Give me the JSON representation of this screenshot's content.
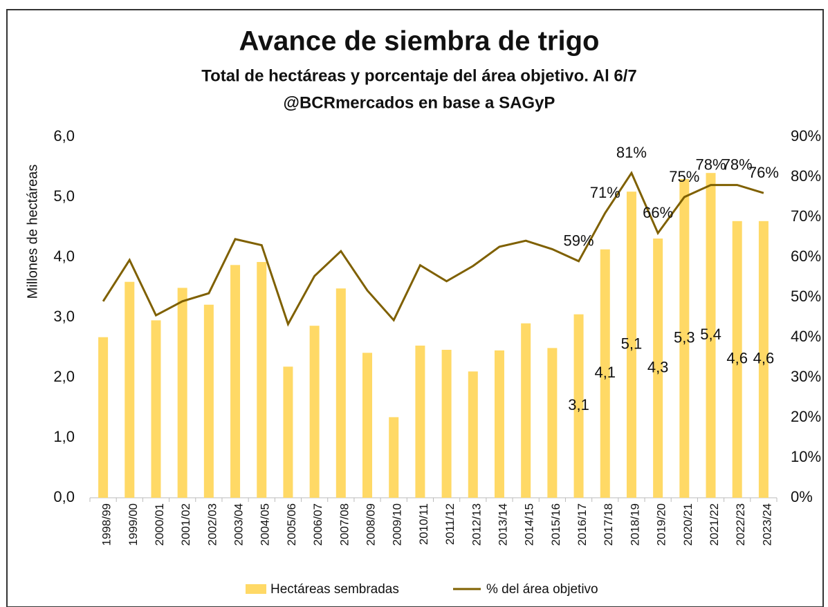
{
  "chart_data": {
    "type": "bar-line",
    "title": "Avance de siembra de trigo",
    "subtitle": "Total de hectáreas y porcentaje del área objetivo. Al 6/7",
    "source": "@BCRmercados en base a SAGyP",
    "y_label": "Millones de hectáreas",
    "categories": [
      "1998/99",
      "1999/00",
      "2000/01",
      "2001/02",
      "2002/03",
      "2003/04",
      "2004/05",
      "2005/06",
      "2006/07",
      "2007/08",
      "2008/09",
      "2009/10",
      "2010/11",
      "2011/12",
      "2012/13",
      "2013/14",
      "2014/15",
      "2015/16",
      "2016/17",
      "2017/18",
      "2018/19",
      "2019/20",
      "2020/21",
      "2021/22",
      "2022/23",
      "2023/24"
    ],
    "series": [
      {
        "name": "Hectáreas sembradas",
        "type": "bar",
        "color": "#ffd966",
        "values": [
          2.67,
          3.59,
          2.95,
          3.49,
          3.21,
          3.87,
          3.92,
          2.18,
          2.86,
          3.48,
          2.41,
          1.34,
          2.53,
          2.46,
          2.1,
          2.45,
          2.9,
          2.49,
          3.05,
          4.13,
          5.09,
          4.31,
          5.3,
          5.4,
          4.6,
          4.6
        ],
        "value_labels": [
          null,
          null,
          null,
          null,
          null,
          null,
          null,
          null,
          null,
          null,
          null,
          null,
          null,
          null,
          null,
          null,
          null,
          null,
          "3,1",
          "4,1",
          "5,1",
          "4,3",
          "5,3",
          "5,4",
          "4,6",
          "4,6"
        ]
      },
      {
        "name": "% del área objetivo",
        "type": "line",
        "axis": "y2",
        "color": "#7f6000",
        "values": [
          49,
          59.3,
          45.5,
          49,
          51,
          64.5,
          63,
          43.3,
          55.3,
          61.5,
          51.7,
          44.3,
          58,
          54,
          57.8,
          62.6,
          64.1,
          62,
          59,
          71,
          81,
          66,
          75,
          78,
          78,
          76
        ],
        "value_labels": [
          null,
          null,
          null,
          null,
          null,
          null,
          null,
          null,
          null,
          null,
          null,
          null,
          null,
          null,
          null,
          null,
          null,
          null,
          "59%",
          "71%",
          "81%",
          "66%",
          "75%",
          "78%",
          "78%",
          "76%"
        ]
      }
    ],
    "ylim": [
      0,
      6
    ],
    "yticks": [
      {
        "value": 0,
        "label": "0,0"
      },
      {
        "value": 1,
        "label": "1,0"
      },
      {
        "value": 2,
        "label": "2,0"
      },
      {
        "value": 3,
        "label": "3,0"
      },
      {
        "value": 4,
        "label": "4,0"
      },
      {
        "value": 5,
        "label": "5,0"
      },
      {
        "value": 6,
        "label": "6,0"
      }
    ],
    "y2lim": [
      0,
      90
    ],
    "y2ticks": [
      {
        "value": 0,
        "label": "0%"
      },
      {
        "value": 10,
        "label": "10%"
      },
      {
        "value": 20,
        "label": "20%"
      },
      {
        "value": 30,
        "label": "30%"
      },
      {
        "value": 40,
        "label": "40%"
      },
      {
        "value": 50,
        "label": "50%"
      },
      {
        "value": 60,
        "label": "60%"
      },
      {
        "value": 70,
        "label": "70%"
      },
      {
        "value": 80,
        "label": "80%"
      },
      {
        "value": 90,
        "label": "90%"
      }
    ],
    "legend": "bottom"
  }
}
